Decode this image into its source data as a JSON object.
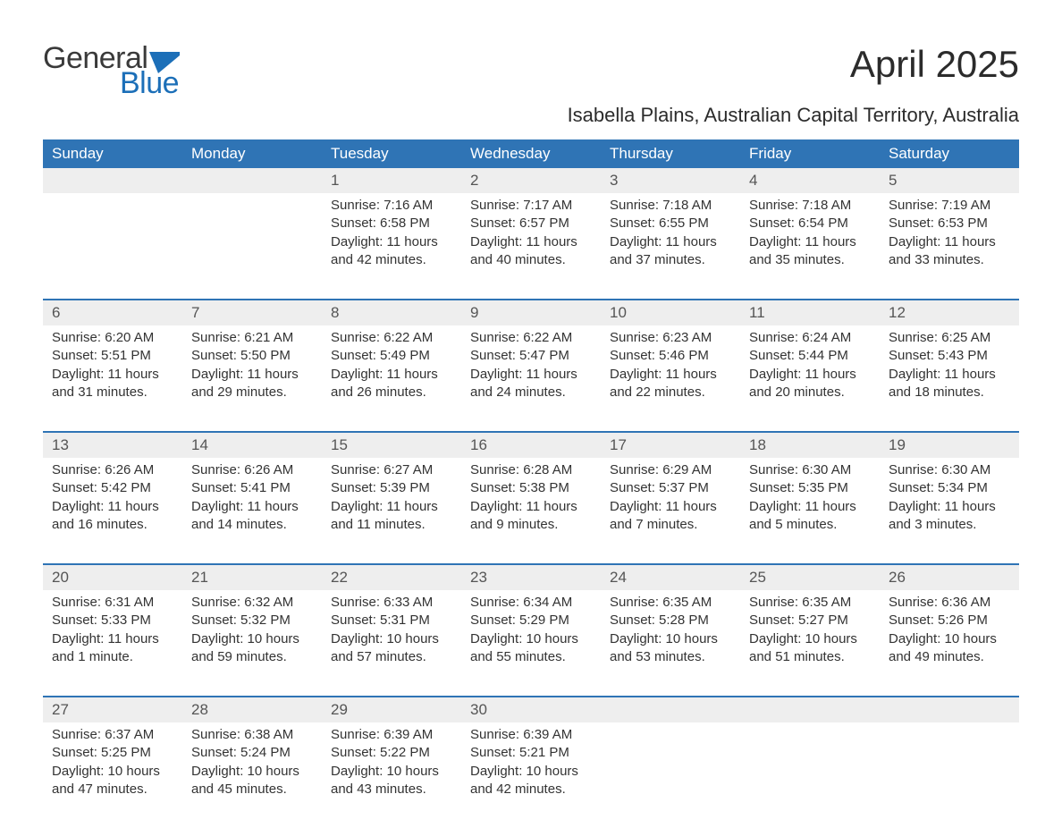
{
  "logo": {
    "word1": "General",
    "word2": "Blue",
    "flag_color": "#1c6fb8"
  },
  "header": {
    "month_title": "April 2025",
    "location": "Isabella Plains, Australian Capital Territory, Australia"
  },
  "colors": {
    "header_bg": "#2f74b5",
    "header_text": "#ffffff",
    "daynum_bg": "#eeeeee",
    "body_bg": "#ffffff",
    "text": "#333333",
    "week_sep": "#2f74b5"
  },
  "calendar": {
    "type": "table",
    "columns": [
      "Sunday",
      "Monday",
      "Tuesday",
      "Wednesday",
      "Thursday",
      "Friday",
      "Saturday"
    ],
    "weeks": [
      [
        null,
        null,
        {
          "n": "1",
          "sr": "Sunrise: 7:16 AM",
          "ss": "Sunset: 6:58 PM",
          "dl1": "Daylight: 11 hours",
          "dl2": "and 42 minutes."
        },
        {
          "n": "2",
          "sr": "Sunrise: 7:17 AM",
          "ss": "Sunset: 6:57 PM",
          "dl1": "Daylight: 11 hours",
          "dl2": "and 40 minutes."
        },
        {
          "n": "3",
          "sr": "Sunrise: 7:18 AM",
          "ss": "Sunset: 6:55 PM",
          "dl1": "Daylight: 11 hours",
          "dl2": "and 37 minutes."
        },
        {
          "n": "4",
          "sr": "Sunrise: 7:18 AM",
          "ss": "Sunset: 6:54 PM",
          "dl1": "Daylight: 11 hours",
          "dl2": "and 35 minutes."
        },
        {
          "n": "5",
          "sr": "Sunrise: 7:19 AM",
          "ss": "Sunset: 6:53 PM",
          "dl1": "Daylight: 11 hours",
          "dl2": "and 33 minutes."
        }
      ],
      [
        {
          "n": "6",
          "sr": "Sunrise: 6:20 AM",
          "ss": "Sunset: 5:51 PM",
          "dl1": "Daylight: 11 hours",
          "dl2": "and 31 minutes."
        },
        {
          "n": "7",
          "sr": "Sunrise: 6:21 AM",
          "ss": "Sunset: 5:50 PM",
          "dl1": "Daylight: 11 hours",
          "dl2": "and 29 minutes."
        },
        {
          "n": "8",
          "sr": "Sunrise: 6:22 AM",
          "ss": "Sunset: 5:49 PM",
          "dl1": "Daylight: 11 hours",
          "dl2": "and 26 minutes."
        },
        {
          "n": "9",
          "sr": "Sunrise: 6:22 AM",
          "ss": "Sunset: 5:47 PM",
          "dl1": "Daylight: 11 hours",
          "dl2": "and 24 minutes."
        },
        {
          "n": "10",
          "sr": "Sunrise: 6:23 AM",
          "ss": "Sunset: 5:46 PM",
          "dl1": "Daylight: 11 hours",
          "dl2": "and 22 minutes."
        },
        {
          "n": "11",
          "sr": "Sunrise: 6:24 AM",
          "ss": "Sunset: 5:44 PM",
          "dl1": "Daylight: 11 hours",
          "dl2": "and 20 minutes."
        },
        {
          "n": "12",
          "sr": "Sunrise: 6:25 AM",
          "ss": "Sunset: 5:43 PM",
          "dl1": "Daylight: 11 hours",
          "dl2": "and 18 minutes."
        }
      ],
      [
        {
          "n": "13",
          "sr": "Sunrise: 6:26 AM",
          "ss": "Sunset: 5:42 PM",
          "dl1": "Daylight: 11 hours",
          "dl2": "and 16 minutes."
        },
        {
          "n": "14",
          "sr": "Sunrise: 6:26 AM",
          "ss": "Sunset: 5:41 PM",
          "dl1": "Daylight: 11 hours",
          "dl2": "and 14 minutes."
        },
        {
          "n": "15",
          "sr": "Sunrise: 6:27 AM",
          "ss": "Sunset: 5:39 PM",
          "dl1": "Daylight: 11 hours",
          "dl2": "and 11 minutes."
        },
        {
          "n": "16",
          "sr": "Sunrise: 6:28 AM",
          "ss": "Sunset: 5:38 PM",
          "dl1": "Daylight: 11 hours",
          "dl2": "and 9 minutes."
        },
        {
          "n": "17",
          "sr": "Sunrise: 6:29 AM",
          "ss": "Sunset: 5:37 PM",
          "dl1": "Daylight: 11 hours",
          "dl2": "and 7 minutes."
        },
        {
          "n": "18",
          "sr": "Sunrise: 6:30 AM",
          "ss": "Sunset: 5:35 PM",
          "dl1": "Daylight: 11 hours",
          "dl2": "and 5 minutes."
        },
        {
          "n": "19",
          "sr": "Sunrise: 6:30 AM",
          "ss": "Sunset: 5:34 PM",
          "dl1": "Daylight: 11 hours",
          "dl2": "and 3 minutes."
        }
      ],
      [
        {
          "n": "20",
          "sr": "Sunrise: 6:31 AM",
          "ss": "Sunset: 5:33 PM",
          "dl1": "Daylight: 11 hours",
          "dl2": "and 1 minute."
        },
        {
          "n": "21",
          "sr": "Sunrise: 6:32 AM",
          "ss": "Sunset: 5:32 PM",
          "dl1": "Daylight: 10 hours",
          "dl2": "and 59 minutes."
        },
        {
          "n": "22",
          "sr": "Sunrise: 6:33 AM",
          "ss": "Sunset: 5:31 PM",
          "dl1": "Daylight: 10 hours",
          "dl2": "and 57 minutes."
        },
        {
          "n": "23",
          "sr": "Sunrise: 6:34 AM",
          "ss": "Sunset: 5:29 PM",
          "dl1": "Daylight: 10 hours",
          "dl2": "and 55 minutes."
        },
        {
          "n": "24",
          "sr": "Sunrise: 6:35 AM",
          "ss": "Sunset: 5:28 PM",
          "dl1": "Daylight: 10 hours",
          "dl2": "and 53 minutes."
        },
        {
          "n": "25",
          "sr": "Sunrise: 6:35 AM",
          "ss": "Sunset: 5:27 PM",
          "dl1": "Daylight: 10 hours",
          "dl2": "and 51 minutes."
        },
        {
          "n": "26",
          "sr": "Sunrise: 6:36 AM",
          "ss": "Sunset: 5:26 PM",
          "dl1": "Daylight: 10 hours",
          "dl2": "and 49 minutes."
        }
      ],
      [
        {
          "n": "27",
          "sr": "Sunrise: 6:37 AM",
          "ss": "Sunset: 5:25 PM",
          "dl1": "Daylight: 10 hours",
          "dl2": "and 47 minutes."
        },
        {
          "n": "28",
          "sr": "Sunrise: 6:38 AM",
          "ss": "Sunset: 5:24 PM",
          "dl1": "Daylight: 10 hours",
          "dl2": "and 45 minutes."
        },
        {
          "n": "29",
          "sr": "Sunrise: 6:39 AM",
          "ss": "Sunset: 5:22 PM",
          "dl1": "Daylight: 10 hours",
          "dl2": "and 43 minutes."
        },
        {
          "n": "30",
          "sr": "Sunrise: 6:39 AM",
          "ss": "Sunset: 5:21 PM",
          "dl1": "Daylight: 10 hours",
          "dl2": "and 42 minutes."
        },
        null,
        null,
        null
      ]
    ]
  }
}
